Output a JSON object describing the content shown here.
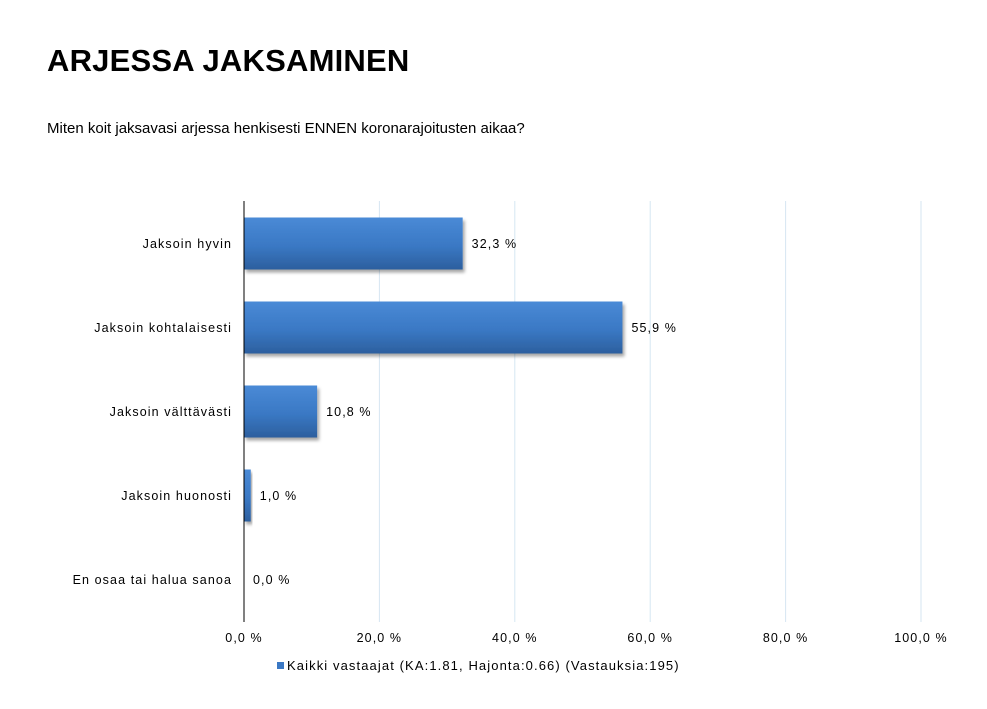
{
  "page": {
    "title": "ARJESSA JAKSAMINEN",
    "subtitle": "Miten koit jaksavasi arjessa henkisesti ENNEN koronarajoitusten aikaa?"
  },
  "chart_data": {
    "type": "bar",
    "orientation": "horizontal",
    "categories": [
      "Jaksoin hyvin",
      "Jaksoin kohtalaisesti",
      "Jaksoin välttävästi",
      "Jaksoin huonosti",
      "En osaa tai halua sanoa"
    ],
    "series": [
      {
        "name": "Kaikki vastaajat (KA:1.81, Hajonta:0.66) (Vastauksia:195)",
        "values": [
          32.3,
          55.9,
          10.8,
          1.0,
          0.0
        ],
        "labels": [
          "32,3 %",
          "55,9 %",
          "10,8 %",
          "1,0 %",
          "0,0 %"
        ],
        "color": "#3A78C4"
      }
    ],
    "xlim": [
      0,
      100
    ],
    "xticks": [
      0,
      20,
      40,
      60,
      80,
      100
    ],
    "xtick_labels": [
      "0,0 %",
      "20,0 %",
      "40,0 %",
      "60,0 %",
      "80,0 %",
      "100,0 %"
    ],
    "grid": true,
    "gridline_color": "#D6E6F2",
    "legend_position": "bottom"
  }
}
